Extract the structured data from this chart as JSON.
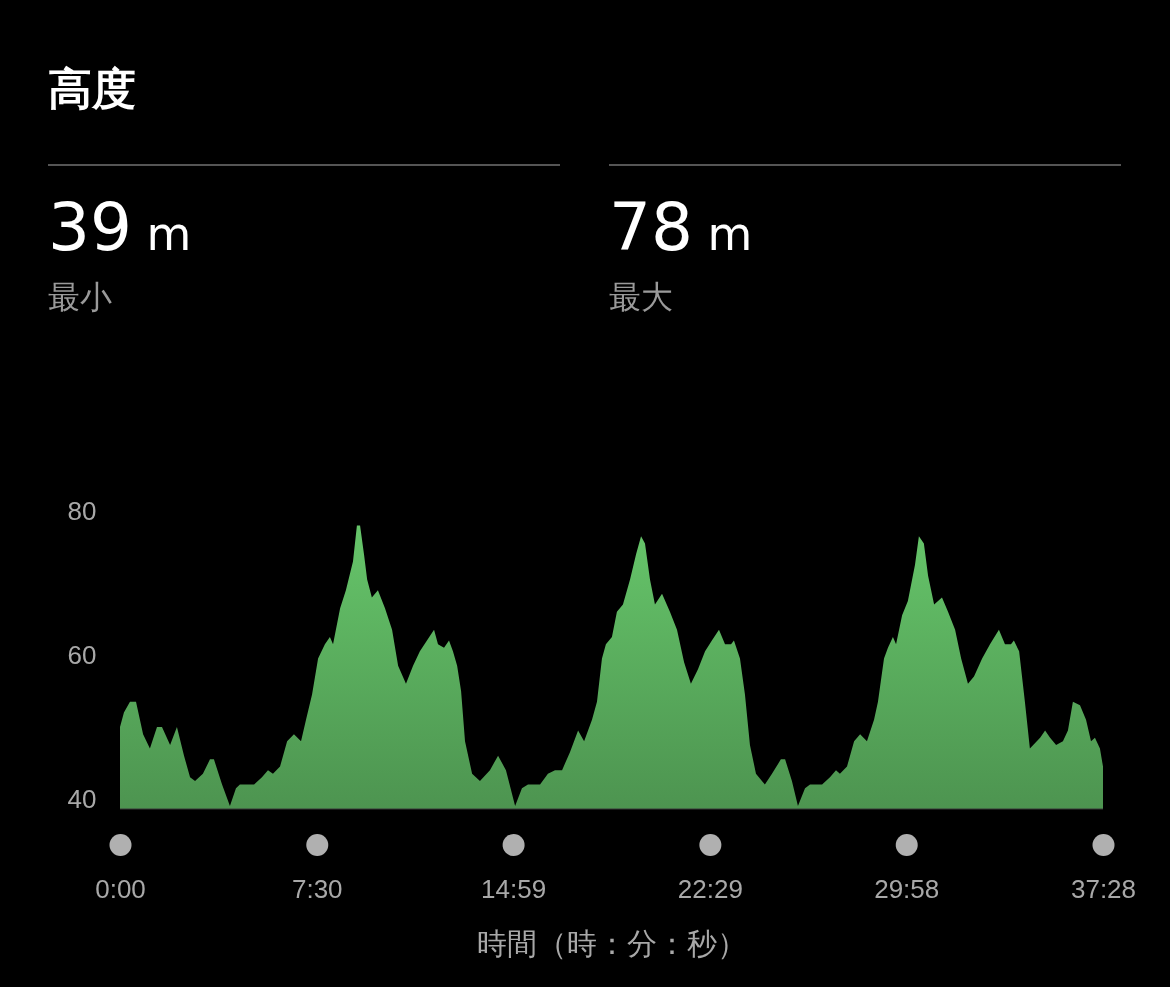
{
  "chart_data": {
    "type": "area",
    "title": "高度",
    "annotations": [
      "39 m",
      "最小",
      "78 m",
      "最大"
    ],
    "xlabel": "時間（時：分：秒）",
    "xlim": [
      0,
      37.467
    ],
    "ylim": [
      38.6,
      80
    ],
    "xticks": [
      {
        "value": 0,
        "label": "0:00"
      },
      {
        "value": 7.5,
        "label": "7:30"
      },
      {
        "value": 14.983,
        "label": "14:59"
      },
      {
        "value": 22.483,
        "label": "22:29"
      },
      {
        "value": 29.967,
        "label": "29:58"
      },
      {
        "value": 37.467,
        "label": "37:28"
      }
    ],
    "yticks": [
      40,
      60,
      80
    ],
    "grid": false,
    "x": [
      0,
      0.15,
      0.38,
      0.61,
      0.88,
      1.14,
      1.41,
      1.6,
      1.91,
      2.17,
      2.44,
      2.67,
      2.86,
      3.16,
      3.43,
      3.58,
      3.89,
      4.19,
      4.42,
      4.57,
      5.11,
      5.41,
      5.64,
      5.83,
      6.1,
      6.37,
      6.63,
      6.9,
      7.09,
      7.32,
      7.55,
      7.81,
      8.0,
      8.12,
      8.39,
      8.61,
      8.88,
      9.03,
      9.15,
      9.3,
      9.42,
      9.6,
      9.83,
      10.1,
      10.37,
      10.6,
      10.9,
      11.17,
      11.43,
      11.7,
      11.97,
      12.12,
      12.35,
      12.54,
      12.69,
      12.85,
      13.0,
      13.15,
      13.42,
      13.72,
      14.1,
      14.41,
      14.71,
      15.06,
      15.32,
      15.55,
      16.01,
      16.31,
      16.58,
      16.85,
      17.15,
      17.46,
      17.69,
      17.99,
      18.18,
      18.37,
      18.52,
      18.75,
      18.94,
      19.17,
      19.44,
      19.67,
      19.86,
      20.01,
      20.2,
      20.39,
      20.66,
      20.96,
      21.23,
      21.5,
      21.76,
      22.03,
      22.3,
      22.56,
      22.83,
      23.06,
      23.29,
      23.4,
      23.63,
      23.82,
      24.01,
      24.24,
      24.58,
      24.85,
      25.19,
      25.35,
      25.61,
      25.84,
      26.11,
      26.3,
      26.76,
      27.06,
      27.29,
      27.44,
      27.71,
      27.98,
      28.21,
      28.47,
      28.74,
      28.89,
      29.12,
      29.27,
      29.46,
      29.58,
      29.81,
      30.03,
      30.3,
      30.45,
      30.64,
      30.8,
      31.03,
      31.33,
      31.56,
      31.83,
      32.06,
      32.32,
      32.55,
      32.86,
      33.16,
      33.5,
      33.73,
      33.96,
      34.07,
      34.27,
      34.49,
      34.68,
      35.07,
      35.26,
      35.45,
      35.68,
      35.94,
      36.13,
      36.32,
      36.59,
      36.82,
      37.01,
      37.16,
      37.35,
      37.467
    ],
    "series": [
      {
        "color": "#5aae5e",
        "values": [
          50,
          52,
          53.5,
          53.5,
          49,
          47,
          50,
          50,
          47.5,
          50,
          46,
          43,
          42.5,
          43.5,
          45.5,
          45.5,
          42,
          39,
          41.5,
          42,
          42,
          43,
          44,
          43.5,
          44.5,
          48,
          49,
          48,
          51,
          54.5,
          59.5,
          61.5,
          62.5,
          61.5,
          66.5,
          69,
          73,
          78,
          78,
          74,
          70.5,
          68,
          69,
          66.5,
          63.5,
          58.5,
          56,
          58.5,
          60.5,
          62,
          63.5,
          61.5,
          61,
          62,
          60.5,
          58.5,
          55,
          48,
          43.5,
          42.5,
          44,
          46,
          44,
          39,
          41.5,
          42,
          42,
          43.5,
          44,
          44,
          46.5,
          49.5,
          48,
          51,
          53.5,
          59.5,
          61.5,
          62.5,
          66,
          67,
          70.5,
          74,
          76.5,
          75.5,
          70.5,
          67,
          68.5,
          66,
          63.5,
          59,
          56,
          58,
          60.5,
          62,
          63.5,
          61.5,
          61.5,
          62,
          59.5,
          54.5,
          47.5,
          43.5,
          42,
          43.5,
          45.5,
          45.5,
          42.5,
          39,
          41.5,
          42,
          42,
          43,
          44,
          43.5,
          44.5,
          48,
          49,
          48,
          51,
          53.5,
          59.5,
          61,
          62.5,
          61.5,
          65.5,
          67.5,
          72.5,
          76.5,
          75.5,
          71,
          67,
          68,
          66,
          63.5,
          59.5,
          56,
          57,
          59.5,
          61.5,
          63.5,
          61.5,
          61.5,
          62,
          60.5,
          53.5,
          47,
          48.5,
          49.5,
          48.5,
          47.5,
          48,
          49.5,
          53.5,
          53,
          51,
          48,
          48.5,
          47,
          44.5
        ]
      }
    ]
  }
}
